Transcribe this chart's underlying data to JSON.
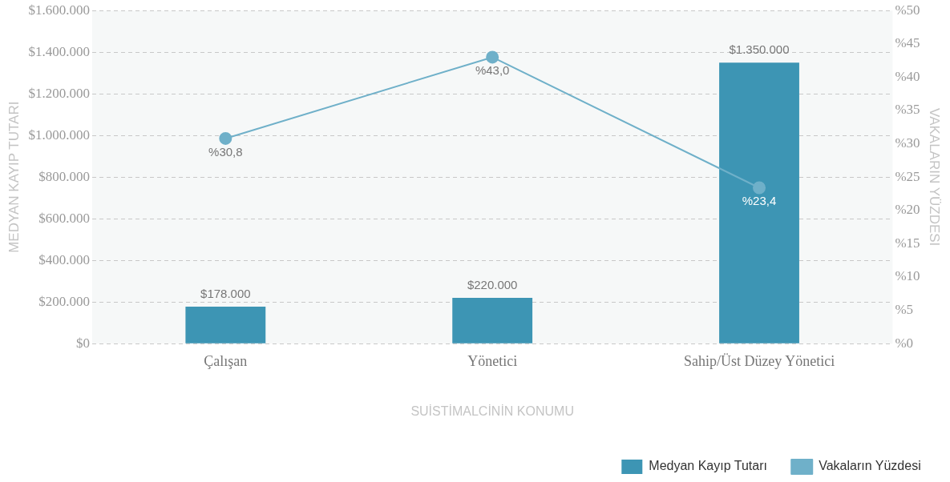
{
  "chart_data": {
    "type": "bar",
    "categories": [
      "Çalışan",
      "Yönetici",
      "Sahip/Üst Düzey Yönetici"
    ],
    "series": [
      {
        "name": "Medyan Kayıp Tutarı",
        "color": "#3d95b4",
        "values": [
          178000,
          220000,
          1350000
        ],
        "value_labels": [
          "$178.000",
          "$220.000",
          "$1.350.000"
        ]
      },
      {
        "name": "Vakaların Yüzdesi",
        "type": "line",
        "axis": "y2",
        "color": "#6fb0c9",
        "marker": "circle",
        "values": [
          30.8,
          43.0,
          23.4
        ],
        "value_labels": [
          "%30,8",
          "%43,0",
          "%23,4"
        ]
      }
    ],
    "xlabel": "SUİSTİMALCİNİN KONUMU",
    "ylabel": "MEDYAN KAYIP TUTARI",
    "y2label": "VAKALARIN YÜZDESI",
    "ylim": [
      0,
      1600000
    ],
    "yticks": [
      {
        "value": 0,
        "label": "$0"
      },
      {
        "value": 200000,
        "label": "$200.000"
      },
      {
        "value": 400000,
        "label": "$400.000"
      },
      {
        "value": 600000,
        "label": "$600.000"
      },
      {
        "value": 800000,
        "label": "$800.000"
      },
      {
        "value": 1000000,
        "label": "$1.000.000"
      },
      {
        "value": 1200000,
        "label": "$1.200.000"
      },
      {
        "value": 1400000,
        "label": "$1.400.000"
      },
      {
        "value": 1600000,
        "label": "$1.600.000"
      }
    ],
    "y2lim": [
      0,
      50
    ],
    "y2ticks": [
      {
        "value": 0,
        "label": "%0"
      },
      {
        "value": 5,
        "label": "%5"
      },
      {
        "value": 10,
        "label": "%10"
      },
      {
        "value": 15,
        "label": "%15"
      },
      {
        "value": 20,
        "label": "%20"
      },
      {
        "value": 25,
        "label": "%25"
      },
      {
        "value": 30,
        "label": "%30"
      },
      {
        "value": 35,
        "label": "%35"
      },
      {
        "value": 40,
        "label": "%40"
      },
      {
        "value": 45,
        "label": "%45"
      },
      {
        "value": 50,
        "label": "%50"
      }
    ],
    "grid": "y",
    "legend": "bottom right"
  }
}
